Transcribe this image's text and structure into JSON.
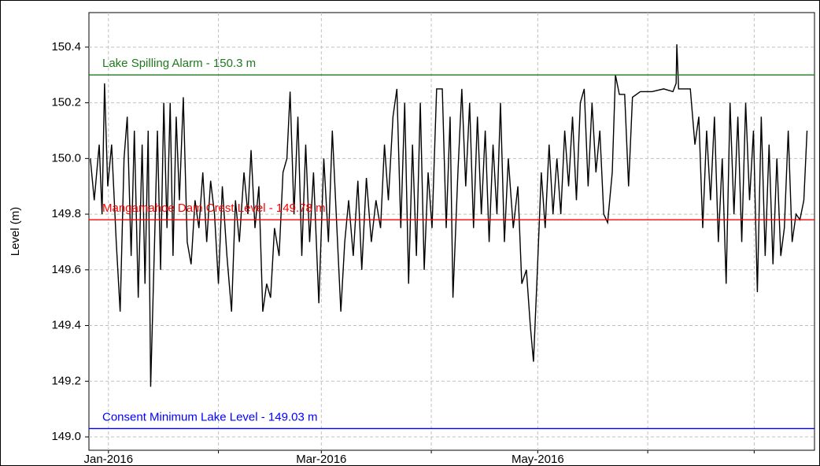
{
  "chart_data": {
    "type": "line",
    "ylabel": "Level (m)",
    "ylim": [
      148.952,
      150.524
    ],
    "yticks": [
      {
        "value": 149,
        "label": "149.0"
      },
      149.2,
      149.4,
      149.6,
      149.8,
      {
        "value": 150,
        "label": "150.0"
      },
      150.2,
      150.4
    ],
    "xlim": [
      -5.5,
      199
    ],
    "xticks": [
      {
        "value": 0,
        "label": "Jan-2016"
      },
      {
        "value": 31,
        "label": null
      },
      {
        "value": 60,
        "label": "Mar-2016"
      },
      {
        "value": 91,
        "label": null
      },
      {
        "value": 121,
        "label": "May-2016"
      },
      {
        "value": 152,
        "label": null
      },
      {
        "value": 182,
        "label": null
      }
    ],
    "grid": true,
    "reference_lines": [
      {
        "label": "Lake Spilling Alarm - 150.3 m",
        "value": 150.3,
        "color": "#1e7a1e"
      },
      {
        "label": "Mangamahoe Dam Crest Level - 149.78 m",
        "value": 149.78,
        "color": "#ff0000"
      },
      {
        "label": "Consent Minimum Lake Level - 149.03 m",
        "value": 149.03,
        "color": "#0000ff"
      }
    ],
    "series": [
      {
        "color": "#000000",
        "x": [
          -5.1,
          -4.0,
          -2.6,
          -1.8,
          -1.1,
          -0.2,
          0.9,
          2.2,
          3.3,
          4.4,
          5.3,
          6.4,
          7.3,
          8.4,
          9.5,
          10.3,
          11.2,
          11.9,
          13.0,
          13.8,
          14.7,
          15.6,
          16.5,
          17.4,
          18.2,
          19.1,
          20.0,
          21.1,
          22.2,
          23.3,
          24.4,
          25.5,
          26.6,
          27.7,
          28.8,
          29.9,
          31.0,
          32.1,
          33.4,
          34.7,
          35.8,
          36.9,
          38.2,
          39.3,
          40.2,
          41.3,
          42.4,
          43.5,
          44.6,
          45.7,
          46.8,
          48.1,
          49.2,
          50.3,
          51.2,
          52.3,
          53.4,
          54.5,
          55.6,
          56.7,
          57.8,
          59.3,
          60.7,
          62.0,
          63.1,
          64.2,
          65.5,
          66.6,
          67.7,
          69.0,
          70.3,
          71.4,
          72.7,
          74.1,
          75.4,
          76.7,
          77.8,
          78.9,
          80.2,
          81.3,
          82.4,
          83.5,
          84.6,
          85.7,
          86.8,
          87.9,
          89.0,
          90.1,
          91.2,
          92.5,
          94.1,
          95.2,
          96.3,
          97.1,
          98.5,
          99.6,
          100.7,
          101.8,
          102.9,
          104.0,
          105.1,
          106.2,
          107.3,
          108.4,
          109.5,
          110.5,
          111.6,
          112.7,
          114.1,
          115.4,
          116.5,
          117.8,
          118.9,
          119.8,
          120.9,
          122.0,
          123.1,
          124.2,
          125.3,
          126.4,
          127.5,
          128.6,
          129.7,
          130.8,
          131.9,
          133.0,
          134.1,
          135.2,
          136.3,
          137.4,
          138.5,
          139.6,
          140.7,
          142.0,
          142.9,
          144.0,
          145.5,
          146.6,
          147.7,
          149.9,
          153.2,
          156.5,
          159.1,
          160.0,
          160.2,
          160.7,
          164.0,
          165.3,
          166.4,
          167.5,
          168.6,
          169.7,
          170.8,
          171.9,
          173.0,
          174.1,
          175.2,
          176.3,
          177.4,
          178.5,
          179.6,
          180.7,
          181.8,
          182.9,
          184.0,
          185.1,
          186.2,
          187.3,
          188.4,
          189.5,
          190.5,
          191.6,
          192.7,
          193.8,
          194.9,
          196.0,
          196.9
        ],
        "values": [
          150.0,
          149.85,
          150.05,
          149.8,
          150.27,
          149.9,
          150.05,
          149.7,
          149.45,
          150.0,
          150.15,
          149.65,
          150.1,
          149.5,
          150.05,
          149.55,
          150.1,
          149.18,
          149.7,
          150.1,
          149.6,
          150.2,
          149.75,
          150.2,
          149.65,
          150.15,
          149.85,
          150.22,
          149.7,
          149.62,
          149.85,
          149.75,
          149.95,
          149.7,
          149.92,
          149.8,
          149.55,
          149.9,
          149.65,
          149.45,
          149.85,
          149.7,
          149.95,
          149.8,
          150.03,
          149.75,
          149.9,
          149.45,
          149.55,
          149.5,
          149.75,
          149.65,
          149.95,
          150.0,
          150.24,
          149.8,
          150.15,
          149.65,
          150.05,
          149.7,
          149.95,
          149.48,
          150.0,
          149.7,
          150.1,
          149.8,
          149.45,
          149.7,
          149.85,
          149.65,
          149.92,
          149.6,
          149.93,
          149.7,
          149.85,
          149.75,
          150.05,
          149.85,
          150.15,
          150.25,
          149.75,
          150.2,
          149.55,
          150.05,
          149.65,
          150.2,
          149.6,
          149.95,
          149.75,
          150.25,
          150.25,
          149.75,
          150.15,
          149.5,
          149.95,
          150.25,
          149.9,
          150.2,
          149.75,
          150.15,
          149.8,
          150.1,
          149.7,
          150.05,
          149.8,
          150.2,
          149.7,
          150.0,
          149.75,
          149.9,
          149.55,
          149.6,
          149.4,
          149.27,
          149.6,
          149.95,
          149.75,
          150.05,
          149.8,
          150.0,
          149.8,
          150.1,
          149.9,
          150.15,
          149.85,
          150.2,
          150.25,
          149.9,
          150.2,
          149.95,
          150.1,
          149.8,
          149.77,
          149.95,
          150.3,
          150.23,
          150.23,
          149.9,
          150.22,
          150.24,
          150.24,
          150.25,
          150.24,
          150.27,
          150.41,
          150.25,
          150.25,
          150.05,
          150.15,
          149.75,
          150.1,
          149.85,
          150.15,
          149.7,
          150.0,
          149.55,
          150.2,
          149.8,
          150.15,
          149.7,
          150.2,
          149.85,
          150.1,
          149.52,
          150.15,
          149.65,
          150.05,
          149.62,
          150.0,
          149.65,
          149.75,
          150.1,
          149.7,
          149.8,
          149.78,
          149.85,
          150.1
        ]
      }
    ]
  }
}
